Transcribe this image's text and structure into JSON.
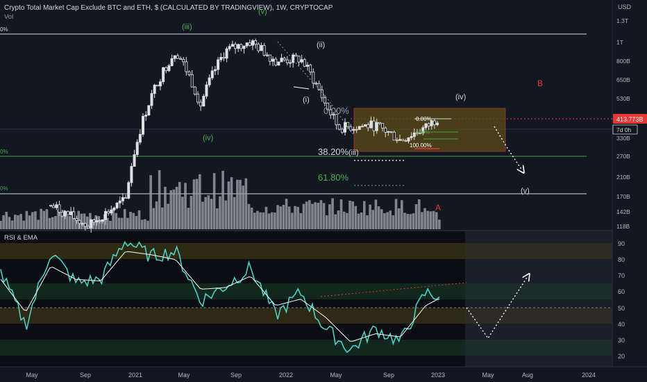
{
  "header": {
    "symbol_title": "Crypto Total Market Cap Exclude BTC and ETH, $ (CALCULATED BY TRADINGVIEW), 1W, CRYPTOCAP",
    "vol_label": "Vol",
    "currency_label": "USD"
  },
  "price_panel": {
    "last_price_badge": "413.773B",
    "countdown_badge": "7d 0h",
    "y_ticks": [
      "1.3T",
      "1T",
      "800B",
      "650B",
      "530B",
      "330B",
      "270B",
      "210B",
      "170B",
      "142B",
      "118B"
    ],
    "left_edge_labels": [
      "0%",
      "0%",
      "0%"
    ],
    "wave_labels": {
      "v_top": "(v)",
      "iii": "(iii)",
      "iv_left": "(iv)",
      "ii": "(ii)",
      "i": "(i)",
      "iv_right": "(iv)",
      "iii_lower": "(iii)",
      "v_target": "(v)",
      "A": "A",
      "B": "B"
    },
    "fib_labels": {
      "zero_big": "0.00%",
      "f382": "38.20%",
      "f618": "61.80%",
      "zero_small": "0.00%",
      "hundred_small": "100.00%",
      "tiny_mid": "0.00%"
    },
    "colors": {
      "bg": "#131722",
      "candle_body": "#e0e0e0",
      "green_text": "#4caf50",
      "green_line": "#43a047",
      "red_dotted": "#e53935",
      "volume": "#9598a1",
      "box_fill": "#6b5a1e",
      "box_border": "#c0392b"
    }
  },
  "rsi_panel": {
    "title": "RSI & EMA",
    "y_ticks": [
      "90",
      "80",
      "70",
      "60",
      "50",
      "40",
      "30",
      "20"
    ],
    "colors": {
      "rsi": "#4dd0c4",
      "ema": "#ffffff",
      "trend": "#e53935"
    }
  },
  "x_axis": {
    "labels": [
      "May",
      "Sep",
      "2021",
      "May",
      "Sep",
      "2022",
      "May",
      "Sep",
      "2023",
      "May",
      "Aug",
      "2024"
    ]
  },
  "chart_data": [
    {
      "type": "candlestick",
      "title": "Crypto Total Market Cap Exclude BTC and ETH, $ (CALCULATED BY TRADINGVIEW), 1W, CRYPTOCAP",
      "ylabel": "USD",
      "y_scale": "log",
      "ylim": [
        115,
        1500
      ],
      "x_range": [
        "2020-03",
        "2024-03"
      ],
      "last_value": 413.773,
      "close_series": {
        "x": [
          "2020-07",
          "2020-10",
          "2021-01",
          "2021-02",
          "2021-05",
          "2021-07",
          "2021-09",
          "2021-11",
          "2022-01",
          "2022-03",
          "2022-05",
          "2022-06",
          "2022-09",
          "2022-11",
          "2023-01",
          "2023-02"
        ],
        "values": [
          150,
          118,
          160,
          330,
          900,
          480,
          900,
          1000,
          800,
          820,
          480,
          370,
          380,
          320,
          370,
          414
        ]
      },
      "projection": {
        "x": [
          "2023-03",
          "2023-06",
          "2023-08"
        ],
        "values": [
          414,
          370,
          240
        ]
      }
    },
    {
      "type": "line",
      "title": "RSI & EMA",
      "ylim": [
        15,
        95
      ],
      "x_range": [
        "2020-03",
        "2024-03"
      ],
      "series": [
        {
          "name": "RSI",
          "x": [
            "2020-03",
            "2020-05",
            "2020-07",
            "2020-09",
            "2020-11",
            "2021-01",
            "2021-03",
            "2021-05",
            "2021-07",
            "2021-09",
            "2021-11",
            "2022-01",
            "2022-03",
            "2022-05",
            "2022-07",
            "2022-09",
            "2022-11",
            "2023-01",
            "2023-02"
          ],
          "values": [
            72,
            40,
            85,
            66,
            68,
            92,
            82,
            85,
            55,
            64,
            75,
            46,
            60,
            38,
            25,
            38,
            30,
            60,
            58
          ]
        },
        {
          "name": "EMA",
          "x": [
            "2020-03",
            "2020-05",
            "2020-07",
            "2020-09",
            "2020-11",
            "2021-01",
            "2021-03",
            "2021-05",
            "2021-07",
            "2021-09",
            "2021-11",
            "2022-01",
            "2022-03",
            "2022-05",
            "2022-07",
            "2022-09",
            "2022-11",
            "2023-01",
            "2023-02"
          ],
          "values": [
            68,
            48,
            76,
            68,
            67,
            85,
            83,
            80,
            62,
            63,
            70,
            52,
            56,
            45,
            30,
            35,
            33,
            52,
            56
          ]
        }
      ],
      "projection": {
        "x": [
          "2023-02",
          "2023-05",
          "2023-08"
        ],
        "values": [
          52,
          31,
          70
        ]
      }
    }
  ]
}
